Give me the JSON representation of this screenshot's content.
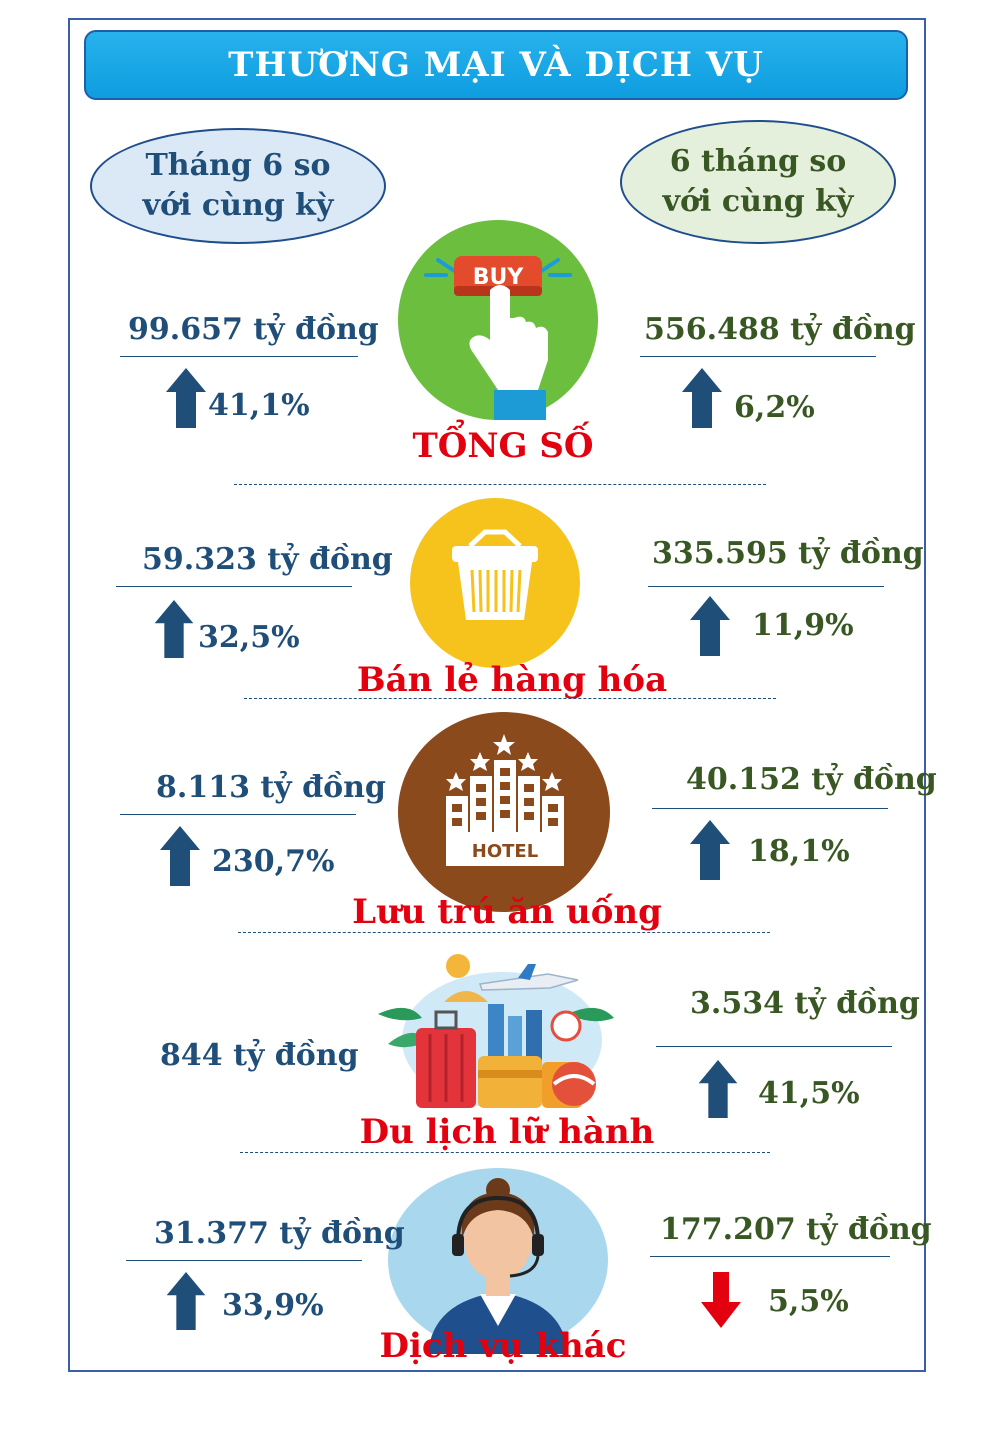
{
  "title": "THƯƠNG MẠI VÀ DỊCH VỤ",
  "headers": {
    "left": [
      "Tháng 6 so",
      "với cùng kỳ"
    ],
    "right": [
      "6 tháng so",
      "với cùng kỳ"
    ]
  },
  "colors": {
    "title_bg": "#1aa8e8",
    "up_arrow": "#1f4e79",
    "down_arrow": "#e3000f",
    "category": "#e3000f"
  },
  "sections": [
    {
      "name": "TỔNG SỐ",
      "icon": "buy-button-icon",
      "left_value": "99.657 tỷ đồng",
      "left_pct": "41,1%",
      "left_dir": "up",
      "right_value": "556.488 tỷ đồng",
      "right_pct": "6,2%",
      "right_dir": "up"
    },
    {
      "name": "Bán lẻ hàng hóa",
      "icon": "shopping-basket-icon",
      "left_value": "59.323 tỷ đồng",
      "left_pct": "32,5%",
      "left_dir": "up",
      "right_value": "335.595 tỷ đồng",
      "right_pct": "11,9%",
      "right_dir": "up"
    },
    {
      "name": "Lưu trú ăn uống",
      "icon": "hotel-icon",
      "left_value": "8.113 tỷ đồng",
      "left_pct": "230,7%",
      "left_dir": "up",
      "right_value": "40.152 tỷ đồng",
      "right_pct": "18,1%",
      "right_dir": "up"
    },
    {
      "name": "Du lịch lữ hành",
      "icon": "travel-luggage-icon",
      "left_value": "844 tỷ đồng",
      "right_value": "3.534 tỷ đồng",
      "right_pct": "41,5%",
      "right_dir": "up"
    },
    {
      "name": "Dịch vụ khác",
      "icon": "call-center-agent-icon",
      "left_value": "31.377 tỷ đồng",
      "left_pct": "33,9%",
      "left_dir": "up",
      "right_value": "177.207 tỷ đồng",
      "right_pct": "5,5%",
      "right_dir": "down"
    }
  ]
}
